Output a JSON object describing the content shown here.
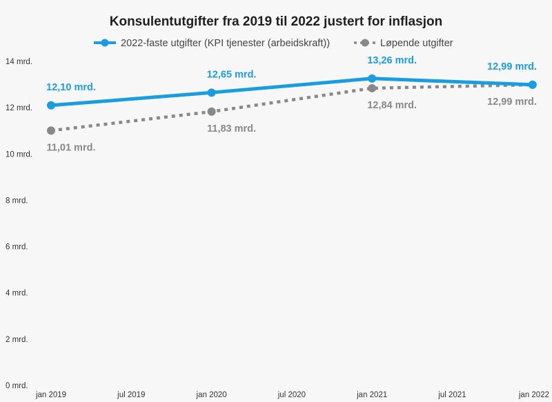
{
  "chart_data": {
    "type": "line",
    "title": "Konsulentutgifter fra 2019 til 2022 justert for inflasjon",
    "x_ticks": [
      "jan 2019",
      "jul 2019",
      "jan 2020",
      "jul 2020",
      "jan 2021",
      "jul 2021",
      "jan 2022"
    ],
    "x": [
      "jan 2019",
      "jan 2020",
      "jan 2021",
      "jan 2022"
    ],
    "y_ticks": [
      "0 mrd.",
      "2 mrd.",
      "4 mrd.",
      "6 mrd.",
      "8 mrd.",
      "10 mrd.",
      "12 mrd.",
      "14 mrd."
    ],
    "ylim": [
      0,
      14
    ],
    "grid": false,
    "legend_position": "top",
    "series": [
      {
        "name": "2022-faste utgifter (KPI tjenester (arbeidskraft))",
        "values": [
          12.1,
          12.65,
          13.26,
          12.99
        ],
        "labels": [
          "12,10 mrd.",
          "12,65 mrd.",
          "13,26 mrd.",
          "12,99 mrd."
        ],
        "color": "#1a9de0",
        "style": "solid"
      },
      {
        "name": "Løpende utgifter",
        "values": [
          11.01,
          11.83,
          12.84,
          12.99
        ],
        "labels": [
          "11,01 mrd.",
          "11,83 mrd.",
          "12,84 mrd.",
          "12,99 mrd."
        ],
        "color": "#888888",
        "style": "dotted"
      }
    ]
  }
}
